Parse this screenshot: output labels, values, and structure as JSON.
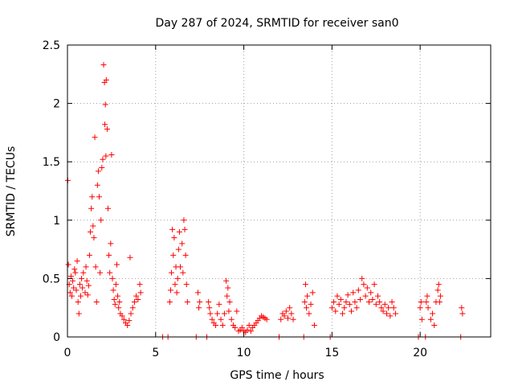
{
  "chart_data": {
    "type": "scatter",
    "title": "Day 287 of 2024, SRMTID for receiver san0",
    "xlabel": "GPS time / hours",
    "ylabel": "SRMTID / TECUs",
    "xlim": [
      0,
      24
    ],
    "ylim": [
      0,
      2.5
    ],
    "grid": true,
    "marker": "+",
    "color": "#ff0000",
    "x_ticks": [
      0,
      5,
      10,
      15,
      20
    ],
    "x_tick_labels": [
      "0",
      "5",
      "10",
      "15",
      "20"
    ],
    "y_ticks": [
      0,
      0.5,
      1,
      1.5,
      2,
      2.5
    ],
    "y_tick_labels": [
      "0",
      "0.5",
      "1",
      "1.5",
      "2",
      "2.5"
    ],
    "series": [
      {
        "name": "san0",
        "points": [
          [
            0.02,
            1.34
          ],
          [
            0.05,
            0.62
          ],
          [
            0.1,
            0.45
          ],
          [
            0.15,
            0.38
          ],
          [
            0.2,
            0.52
          ],
          [
            0.25,
            0.35
          ],
          [
            0.3,
            0.48
          ],
          [
            0.35,
            0.42
          ],
          [
            0.4,
            0.58
          ],
          [
            0.45,
            0.55
          ],
          [
            0.5,
            0.4
          ],
          [
            0.55,
            0.65
          ],
          [
            0.6,
            0.3
          ],
          [
            0.65,
            0.2
          ],
          [
            0.7,
            0.45
          ],
          [
            0.75,
            0.35
          ],
          [
            0.8,
            0.5
          ],
          [
            0.85,
            0.42
          ],
          [
            0.9,
            0.55
          ],
          [
            1.0,
            0.38
          ],
          [
            1.05,
            0.6
          ],
          [
            1.1,
            0.48
          ],
          [
            1.15,
            0.36
          ],
          [
            1.2,
            0.44
          ],
          [
            1.25,
            0.7
          ],
          [
            1.3,
            0.9
          ],
          [
            1.35,
            1.1
          ],
          [
            1.4,
            1.2
          ],
          [
            1.45,
            0.95
          ],
          [
            1.5,
            0.85
          ],
          [
            1.55,
            1.71
          ],
          [
            1.6,
            0.6
          ],
          [
            1.65,
            0.3
          ],
          [
            1.7,
            1.3
          ],
          [
            1.75,
            1.42
          ],
          [
            1.8,
            1.2
          ],
          [
            1.85,
            0.55
          ],
          [
            1.9,
            1.0
          ],
          [
            1.95,
            1.45
          ],
          [
            2.0,
            1.52
          ],
          [
            2.05,
            2.33
          ],
          [
            2.1,
            2.18
          ],
          [
            2.12,
            1.82
          ],
          [
            2.15,
            1.99
          ],
          [
            2.18,
            1.55
          ],
          [
            2.2,
            2.2
          ],
          [
            2.25,
            1.78
          ],
          [
            2.3,
            1.1
          ],
          [
            2.35,
            0.7
          ],
          [
            2.4,
            0.55
          ],
          [
            2.45,
            0.8
          ],
          [
            2.5,
            1.56
          ],
          [
            2.55,
            0.5
          ],
          [
            2.6,
            0.4
          ],
          [
            2.65,
            0.32
          ],
          [
            2.7,
            0.28
          ],
          [
            2.75,
            0.45
          ],
          [
            2.8,
            0.62
          ],
          [
            2.85,
            0.35
          ],
          [
            2.9,
            0.25
          ],
          [
            2.95,
            0.3
          ],
          [
            3.0,
            0.2
          ],
          [
            3.1,
            0.18
          ],
          [
            3.2,
            0.15
          ],
          [
            3.3,
            0.12
          ],
          [
            3.4,
            0.1
          ],
          [
            3.5,
            0.14
          ],
          [
            3.55,
            0.68
          ],
          [
            3.6,
            0.2
          ],
          [
            3.7,
            0.25
          ],
          [
            3.8,
            0.3
          ],
          [
            3.9,
            0.35
          ],
          [
            4.0,
            0.32
          ],
          [
            4.1,
            0.45
          ],
          [
            4.15,
            0.38
          ],
          [
            5.4,
            0.0
          ],
          [
            5.7,
            0.0
          ],
          [
            5.8,
            0.3
          ],
          [
            5.85,
            0.4
          ],
          [
            5.9,
            0.55
          ],
          [
            5.95,
            0.92
          ],
          [
            6.0,
            0.7
          ],
          [
            6.05,
            0.85
          ],
          [
            6.1,
            0.45
          ],
          [
            6.15,
            0.6
          ],
          [
            6.2,
            0.38
          ],
          [
            6.25,
            0.5
          ],
          [
            6.3,
            0.75
          ],
          [
            6.35,
            0.9
          ],
          [
            6.4,
            0.6
          ],
          [
            6.5,
            0.8
          ],
          [
            6.55,
            0.55
          ],
          [
            6.6,
            1.0
          ],
          [
            6.65,
            0.92
          ],
          [
            6.7,
            0.7
          ],
          [
            6.75,
            0.45
          ],
          [
            6.8,
            0.3
          ],
          [
            7.3,
            0.0
          ],
          [
            7.4,
            0.38
          ],
          [
            7.45,
            0.25
          ],
          [
            7.5,
            0.3
          ],
          [
            7.9,
            0.0
          ],
          [
            8.0,
            0.3
          ],
          [
            8.05,
            0.25
          ],
          [
            8.1,
            0.2
          ],
          [
            8.2,
            0.15
          ],
          [
            8.3,
            0.12
          ],
          [
            8.4,
            0.1
          ],
          [
            8.5,
            0.2
          ],
          [
            8.6,
            0.28
          ],
          [
            8.7,
            0.15
          ],
          [
            8.8,
            0.1
          ],
          [
            8.9,
            0.2
          ],
          [
            9.0,
            0.48
          ],
          [
            9.05,
            0.35
          ],
          [
            9.1,
            0.42
          ],
          [
            9.15,
            0.22
          ],
          [
            9.2,
            0.3
          ],
          [
            9.3,
            0.15
          ],
          [
            9.4,
            0.1
          ],
          [
            9.5,
            0.08
          ],
          [
            9.6,
            0.22
          ],
          [
            9.7,
            0.05
          ],
          [
            9.8,
            0.06
          ],
          [
            9.9,
            0.08
          ],
          [
            10.0,
            0.05
          ],
          [
            10.1,
            0.04
          ],
          [
            10.2,
            0.06
          ],
          [
            10.3,
            0.1
          ],
          [
            10.4,
            0.05
          ],
          [
            10.5,
            0.08
          ],
          [
            10.6,
            0.1
          ],
          [
            10.7,
            0.12
          ],
          [
            10.8,
            0.14
          ],
          [
            10.9,
            0.16
          ],
          [
            11.0,
            0.18
          ],
          [
            11.1,
            0.17
          ],
          [
            11.2,
            0.16
          ],
          [
            11.3,
            0.15
          ],
          [
            12.0,
            0.0
          ],
          [
            12.1,
            0.15
          ],
          [
            12.2,
            0.2
          ],
          [
            12.3,
            0.18
          ],
          [
            12.4,
            0.22
          ],
          [
            12.5,
            0.16
          ],
          [
            12.6,
            0.25
          ],
          [
            12.7,
            0.2
          ],
          [
            12.8,
            0.15
          ],
          [
            13.4,
            0.0
          ],
          [
            13.45,
            0.3
          ],
          [
            13.5,
            0.45
          ],
          [
            13.55,
            0.25
          ],
          [
            13.6,
            0.35
          ],
          [
            13.7,
            0.2
          ],
          [
            13.8,
            0.28
          ],
          [
            13.9,
            0.38
          ],
          [
            14.0,
            0.1
          ],
          [
            14.9,
            0.0
          ],
          [
            15.0,
            0.25
          ],
          [
            15.1,
            0.3
          ],
          [
            15.2,
            0.22
          ],
          [
            15.3,
            0.35
          ],
          [
            15.4,
            0.28
          ],
          [
            15.5,
            0.32
          ],
          [
            15.6,
            0.2
          ],
          [
            15.7,
            0.25
          ],
          [
            15.8,
            0.3
          ],
          [
            15.9,
            0.36
          ],
          [
            16.0,
            0.28
          ],
          [
            16.1,
            0.22
          ],
          [
            16.2,
            0.38
          ],
          [
            16.3,
            0.3
          ],
          [
            16.4,
            0.25
          ],
          [
            16.5,
            0.4
          ],
          [
            16.6,
            0.32
          ],
          [
            16.7,
            0.5
          ],
          [
            16.8,
            0.45
          ],
          [
            16.9,
            0.35
          ],
          [
            17.0,
            0.42
          ],
          [
            17.1,
            0.3
          ],
          [
            17.2,
            0.38
          ],
          [
            17.3,
            0.32
          ],
          [
            17.4,
            0.45
          ],
          [
            17.5,
            0.28
          ],
          [
            17.6,
            0.35
          ],
          [
            17.7,
            0.3
          ],
          [
            17.8,
            0.25
          ],
          [
            17.9,
            0.22
          ],
          [
            18.0,
            0.28
          ],
          [
            18.1,
            0.2
          ],
          [
            18.2,
            0.25
          ],
          [
            18.3,
            0.18
          ],
          [
            18.4,
            0.3
          ],
          [
            18.5,
            0.25
          ],
          [
            18.6,
            0.2
          ],
          [
            19.9,
            0.0
          ],
          [
            20.0,
            0.25
          ],
          [
            20.05,
            0.3
          ],
          [
            20.1,
            0.15
          ],
          [
            20.3,
            0.0
          ],
          [
            20.35,
            0.3
          ],
          [
            20.4,
            0.35
          ],
          [
            20.45,
            0.25
          ],
          [
            20.6,
            0.15
          ],
          [
            20.7,
            0.2
          ],
          [
            20.8,
            0.1
          ],
          [
            20.9,
            0.3
          ],
          [
            21.0,
            0.4
          ],
          [
            21.05,
            0.45
          ],
          [
            21.1,
            0.3
          ],
          [
            21.15,
            0.35
          ],
          [
            22.3,
            0.0
          ],
          [
            22.35,
            0.25
          ],
          [
            22.4,
            0.2
          ]
        ]
      }
    ]
  }
}
